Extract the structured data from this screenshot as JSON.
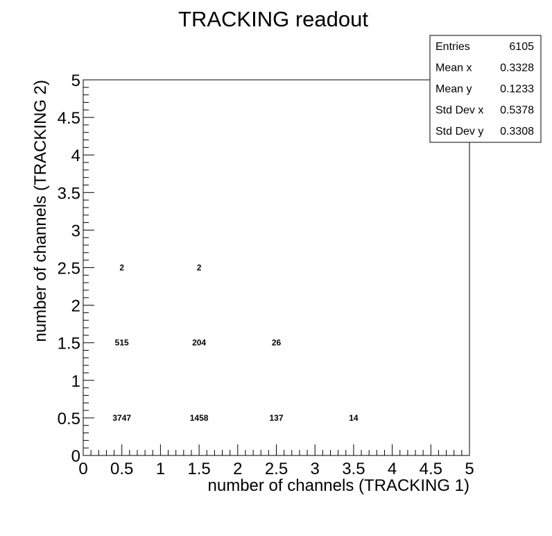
{
  "chart_data": {
    "type": "heatmap",
    "title": "TRACKING readout",
    "xlabel": "number of channels (TRACKING 1)",
    "ylabel": "number of channels (TRACKING 2)",
    "xlim": [
      0,
      5
    ],
    "ylim": [
      0,
      5
    ],
    "x_ticks": [
      "0",
      "0.5",
      "1",
      "1.5",
      "2",
      "2.5",
      "3",
      "3.5",
      "4",
      "4.5",
      "5"
    ],
    "y_ticks": [
      "0",
      "0.5",
      "1",
      "1.5",
      "2",
      "2.5",
      "3",
      "3.5",
      "4",
      "4.5",
      "5"
    ],
    "bin_width": 1,
    "cells": [
      {
        "x": 0.5,
        "y": 0.5,
        "value": 3747
      },
      {
        "x": 1.5,
        "y": 0.5,
        "value": 1458
      },
      {
        "x": 2.5,
        "y": 0.5,
        "value": 137
      },
      {
        "x": 3.5,
        "y": 0.5,
        "value": 14
      },
      {
        "x": 0.5,
        "y": 1.5,
        "value": 515
      },
      {
        "x": 1.5,
        "y": 1.5,
        "value": 204
      },
      {
        "x": 2.5,
        "y": 1.5,
        "value": 26
      },
      {
        "x": 0.5,
        "y": 2.5,
        "value": 2
      },
      {
        "x": 1.5,
        "y": 2.5,
        "value": 2
      }
    ],
    "grid": false,
    "stats_box": [
      {
        "label": "Entries",
        "value": "6105"
      },
      {
        "label": "Mean x",
        "value": "0.3328"
      },
      {
        "label": "Mean y",
        "value": "0.1233"
      },
      {
        "label": "Std Dev x",
        "value": "0.5378"
      },
      {
        "label": "Std Dev y",
        "value": "0.3308"
      }
    ],
    "stats_box_placement": "top-right"
  }
}
